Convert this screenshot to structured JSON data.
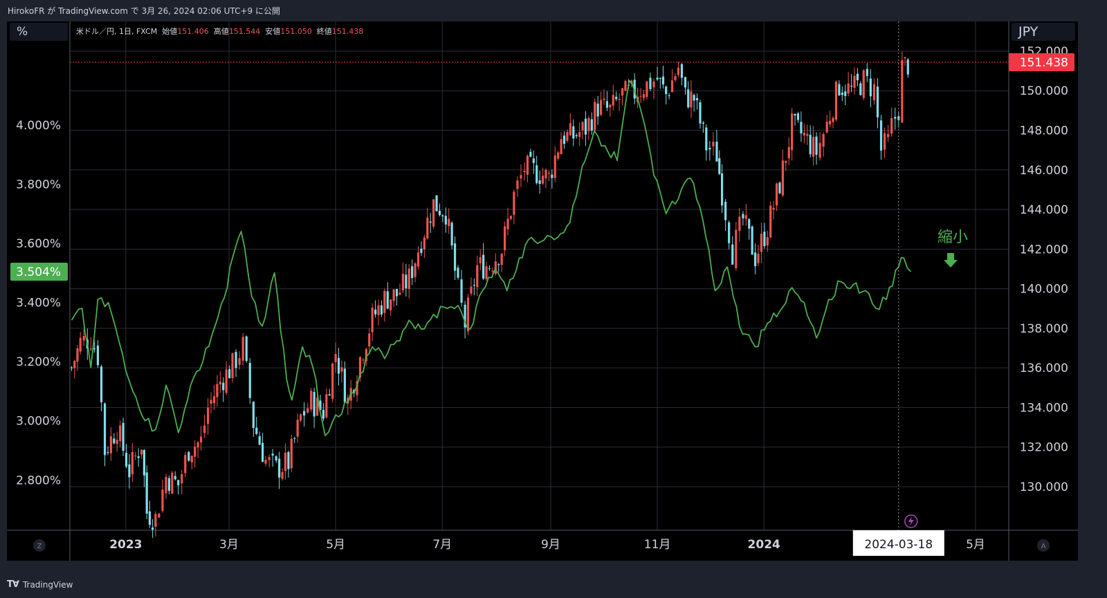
{
  "header": {
    "publish_text": "HirokoFR が TradingView.com で 3月 26, 2024 02:06 UTC+9 に公開"
  },
  "legend": {
    "symbol": "米ドル／円, 1日, FXCM",
    "open_label": "始値",
    "open": "151.406",
    "high_label": "高値",
    "high": "151.544",
    "low_label": "安値",
    "low": "151.050",
    "close_label": "終値",
    "close": "151.438"
  },
  "left_axis_unit": "%",
  "right_axis_unit": "JPY",
  "annotation": {
    "text": "縮小",
    "arrow": "down"
  },
  "crosshair_date": "2024-03-18",
  "footer": {
    "brand": "TradingView"
  },
  "colors": {
    "up": "#ef5350",
    "down": "#80deea",
    "line": "#4caf50",
    "price_badge": "#f23645",
    "pct_badge": "#4caf50"
  },
  "chart_data": {
    "type": "line",
    "x_tick_labels": [
      "2023",
      "3月",
      "5月",
      "7月",
      "9月",
      "11月",
      "2024",
      "5月"
    ],
    "x_tick_dates": [
      "2023-01-01",
      "2023-03-01",
      "2023-05-01",
      "2023-07-01",
      "2023-09-01",
      "2023-11-01",
      "2024-01-01",
      "2024-05-01"
    ],
    "x_range": [
      "2022-11-30",
      "2024-05-20"
    ],
    "left_axis": {
      "unit": "%",
      "range": [
        2.63,
        4.35
      ],
      "ticks": [
        "2.800%",
        "3.000%",
        "3.200%",
        "3.400%",
        "3.600%",
        "3.800%",
        "4.000%"
      ],
      "current_label": "3.504%",
      "current_value": 3.504
    },
    "right_axis": {
      "unit": "JPY",
      "range": [
        127.8,
        153.5
      ],
      "ticks": [
        "130.000",
        "132.000",
        "134.000",
        "136.000",
        "138.000",
        "140.000",
        "142.000",
        "144.000",
        "146.000",
        "148.000",
        "150.000",
        "152.000"
      ],
      "current_label": "151.438",
      "current_value": 151.438
    },
    "series": [
      {
        "kind": "candlestick",
        "axis": "right",
        "points": [
          [
            "2022-12-01",
            136.0
          ],
          [
            "2022-12-06",
            137.3
          ],
          [
            "2022-12-12",
            137.5
          ],
          [
            "2022-12-16",
            136.6
          ],
          [
            "2022-12-20",
            131.8
          ],
          [
            "2022-12-27",
            133.0
          ],
          [
            "2023-01-03",
            130.8
          ],
          [
            "2023-01-10",
            132.2
          ],
          [
            "2023-01-13",
            128.7
          ],
          [
            "2023-01-18",
            128.4
          ],
          [
            "2023-01-24",
            130.5
          ],
          [
            "2023-01-31",
            130.1
          ],
          [
            "2023-02-06",
            131.9
          ],
          [
            "2023-02-13",
            132.3
          ],
          [
            "2023-02-17",
            134.0
          ],
          [
            "2023-02-24",
            135.3
          ],
          [
            "2023-03-03",
            136.1
          ],
          [
            "2023-03-09",
            137.1
          ],
          [
            "2023-03-15",
            133.2
          ],
          [
            "2023-03-22",
            131.3
          ],
          [
            "2023-03-28",
            130.9
          ],
          [
            "2023-04-04",
            131.2
          ],
          [
            "2023-04-11",
            133.5
          ],
          [
            "2023-04-17",
            134.3
          ],
          [
            "2023-04-24",
            133.8
          ],
          [
            "2023-05-01",
            136.8
          ],
          [
            "2023-05-08",
            134.3
          ],
          [
            "2023-05-15",
            136.5
          ],
          [
            "2023-05-22",
            138.5
          ],
          [
            "2023-05-29",
            139.5
          ],
          [
            "2023-06-05",
            139.7
          ],
          [
            "2023-06-12",
            140.5
          ],
          [
            "2023-06-19",
            142.5
          ],
          [
            "2023-06-26",
            144.3
          ],
          [
            "2023-07-03",
            143.9
          ],
          [
            "2023-07-10",
            139.9
          ],
          [
            "2023-07-14",
            138.2
          ],
          [
            "2023-07-21",
            141.1
          ],
          [
            "2023-07-28",
            141.2
          ],
          [
            "2023-08-04",
            142.0
          ],
          [
            "2023-08-11",
            144.7
          ],
          [
            "2023-08-17",
            146.1
          ],
          [
            "2023-08-24",
            145.9
          ],
          [
            "2023-08-31",
            145.6
          ],
          [
            "2023-09-07",
            147.7
          ],
          [
            "2023-09-14",
            147.7
          ],
          [
            "2023-09-21",
            148.1
          ],
          [
            "2023-09-28",
            149.2
          ],
          [
            "2023-10-05",
            149.0
          ],
          [
            "2023-10-12",
            149.8
          ],
          [
            "2023-10-19",
            149.9
          ],
          [
            "2023-10-26",
            150.3
          ],
          [
            "2023-11-01",
            150.6
          ],
          [
            "2023-11-06",
            149.8
          ],
          [
            "2023-11-13",
            151.2
          ],
          [
            "2023-11-17",
            149.7
          ],
          [
            "2023-11-22",
            149.6
          ],
          [
            "2023-11-29",
            147.2
          ],
          [
            "2023-12-05",
            146.8
          ],
          [
            "2023-12-08",
            144.9
          ],
          [
            "2023-12-14",
            141.9
          ],
          [
            "2023-12-20",
            143.5
          ],
          [
            "2023-12-27",
            141.6
          ],
          [
            "2024-01-03",
            143.1
          ],
          [
            "2024-01-10",
            145.3
          ],
          [
            "2024-01-17",
            148.2
          ],
          [
            "2024-01-24",
            147.7
          ],
          [
            "2024-01-31",
            146.9
          ],
          [
            "2024-02-06",
            148.3
          ],
          [
            "2024-02-13",
            150.3
          ],
          [
            "2024-02-20",
            150.0
          ],
          [
            "2024-02-27",
            150.5
          ],
          [
            "2024-03-04",
            150.1
          ],
          [
            "2024-03-08",
            147.0
          ],
          [
            "2024-03-12",
            147.4
          ],
          [
            "2024-03-14",
            148.2
          ],
          [
            "2024-03-18",
            149.1
          ],
          [
            "2024-03-20",
            151.2
          ],
          [
            "2024-03-25",
            151.438
          ]
        ]
      },
      {
        "kind": "line",
        "axis": "left",
        "points": [
          [
            "2022-12-01",
            3.34
          ],
          [
            "2022-12-07",
            3.38
          ],
          [
            "2022-12-12",
            3.18
          ],
          [
            "2022-12-16",
            3.41
          ],
          [
            "2022-12-22",
            3.4
          ],
          [
            "2022-12-28",
            3.27
          ],
          [
            "2023-01-05",
            3.1
          ],
          [
            "2023-01-12",
            3.0
          ],
          [
            "2023-01-18",
            2.97
          ],
          [
            "2023-01-24",
            3.12
          ],
          [
            "2023-01-31",
            2.96
          ],
          [
            "2023-02-07",
            3.12
          ],
          [
            "2023-02-14",
            3.2
          ],
          [
            "2023-02-21",
            3.32
          ],
          [
            "2023-02-28",
            3.45
          ],
          [
            "2023-03-03",
            3.55
          ],
          [
            "2023-03-08",
            3.64
          ],
          [
            "2023-03-14",
            3.42
          ],
          [
            "2023-03-20",
            3.32
          ],
          [
            "2023-03-27",
            3.5
          ],
          [
            "2023-04-03",
            3.14
          ],
          [
            "2023-04-06",
            3.07
          ],
          [
            "2023-04-12",
            3.25
          ],
          [
            "2023-04-18",
            3.18
          ],
          [
            "2023-04-25",
            2.95
          ],
          [
            "2023-05-01",
            3.02
          ],
          [
            "2023-05-08",
            3.06
          ],
          [
            "2023-05-15",
            3.16
          ],
          [
            "2023-05-22",
            3.25
          ],
          [
            "2023-05-29",
            3.21
          ],
          [
            "2023-06-05",
            3.27
          ],
          [
            "2023-06-12",
            3.34
          ],
          [
            "2023-06-19",
            3.31
          ],
          [
            "2023-06-26",
            3.36
          ],
          [
            "2023-07-04",
            3.38
          ],
          [
            "2023-07-10",
            3.39
          ],
          [
            "2023-07-17",
            3.31
          ],
          [
            "2023-07-24",
            3.44
          ],
          [
            "2023-07-31",
            3.51
          ],
          [
            "2023-08-07",
            3.44
          ],
          [
            "2023-08-14",
            3.55
          ],
          [
            "2023-08-21",
            3.62
          ],
          [
            "2023-08-28",
            3.61
          ],
          [
            "2023-09-05",
            3.62
          ],
          [
            "2023-09-12",
            3.67
          ],
          [
            "2023-09-19",
            3.86
          ],
          [
            "2023-09-26",
            3.98
          ],
          [
            "2023-10-02",
            3.93
          ],
          [
            "2023-10-09",
            3.88
          ],
          [
            "2023-10-16",
            4.15
          ],
          [
            "2023-10-23",
            4.04
          ],
          [
            "2023-10-30",
            3.83
          ],
          [
            "2023-11-06",
            3.7
          ],
          [
            "2023-11-13",
            3.75
          ],
          [
            "2023-11-20",
            3.82
          ],
          [
            "2023-11-27",
            3.68
          ],
          [
            "2023-12-04",
            3.44
          ],
          [
            "2023-12-11",
            3.52
          ],
          [
            "2023-12-18",
            3.32
          ],
          [
            "2023-12-27",
            3.25
          ],
          [
            "2024-01-03",
            3.33
          ],
          [
            "2024-01-10",
            3.37
          ],
          [
            "2024-01-17",
            3.45
          ],
          [
            "2024-01-24",
            3.4
          ],
          [
            "2024-01-31",
            3.28
          ],
          [
            "2024-02-07",
            3.41
          ],
          [
            "2024-02-14",
            3.47
          ],
          [
            "2024-02-21",
            3.46
          ],
          [
            "2024-02-28",
            3.44
          ],
          [
            "2024-03-05",
            3.38
          ],
          [
            "2024-03-11",
            3.41
          ],
          [
            "2024-03-18",
            3.52
          ],
          [
            "2024-03-21",
            3.55
          ],
          [
            "2024-03-25",
            3.504
          ]
        ]
      }
    ]
  }
}
